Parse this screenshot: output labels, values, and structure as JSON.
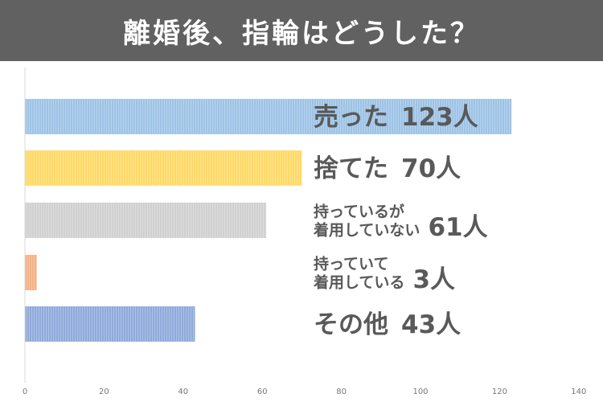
{
  "title": "離婚後、指輪はどうした？",
  "chart_data": {
    "type": "bar",
    "orientation": "horizontal",
    "categories": [
      "売った",
      "捨てた",
      "持っているが着用していない",
      "持っていて着用している",
      "その他"
    ],
    "values": [
      123,
      70,
      61,
      3,
      43
    ],
    "value_labels": [
      "123人",
      "70人",
      "61人",
      "3人",
      "43人"
    ],
    "category_label_lines": [
      [
        "売った"
      ],
      [
        "捨てた"
      ],
      [
        "持っているが",
        "着用していない"
      ],
      [
        "持っていて",
        "着用している"
      ],
      [
        "その他"
      ]
    ],
    "colors": [
      "#9dc3e6",
      "#ffd966",
      "#d0d0d0",
      "#f4b183",
      "#8faadc"
    ],
    "xlim": [
      0,
      140
    ],
    "xticks": [
      "0",
      "20",
      "40",
      "60",
      "80",
      "100",
      "120",
      "140"
    ],
    "xlabel": "",
    "ylabel": "",
    "grid": false,
    "legend": false
  }
}
